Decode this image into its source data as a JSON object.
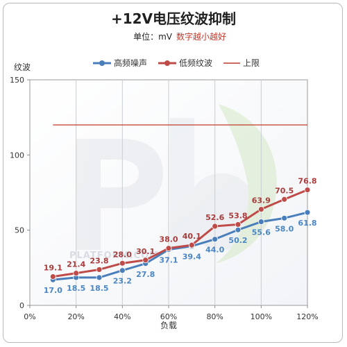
{
  "chart_data": {
    "type": "line",
    "title": "+12V电压纹波抑制",
    "subtitle_unit": "单位：mV",
    "subtitle_note": "数字越小越好",
    "ylabel": "纹波",
    "xlabel": "负载",
    "x_ticks": [
      "0%",
      "20%",
      "40%",
      "60%",
      "80%",
      "100%",
      "120%"
    ],
    "y_ticks": [
      "0",
      "50",
      "100",
      "150"
    ],
    "xlim": [
      0,
      120
    ],
    "ylim": [
      0,
      150
    ],
    "x": [
      10,
      20,
      30,
      40,
      50,
      60,
      70,
      80,
      90,
      100,
      110,
      120
    ],
    "series": [
      {
        "name": "高频噪声",
        "color": "#4a7ebb",
        "values": [
          17.0,
          18.5,
          18.5,
          23.2,
          27.8,
          37.1,
          39.4,
          44.0,
          50.2,
          55.6,
          58.0,
          61.8
        ]
      },
      {
        "name": "低频纹波",
        "color": "#be4b48",
        "values": [
          19.1,
          21.4,
          23.8,
          28.0,
          30.1,
          38.0,
          40.1,
          52.6,
          53.8,
          63.9,
          70.5,
          76.8
        ]
      }
    ],
    "limit": {
      "name": "上限",
      "color": "#c0392b",
      "value": 120,
      "x_range": [
        10,
        120
      ]
    },
    "grid": "vertical",
    "legend_position": "top"
  },
  "watermark": "PLATFORM.COM"
}
